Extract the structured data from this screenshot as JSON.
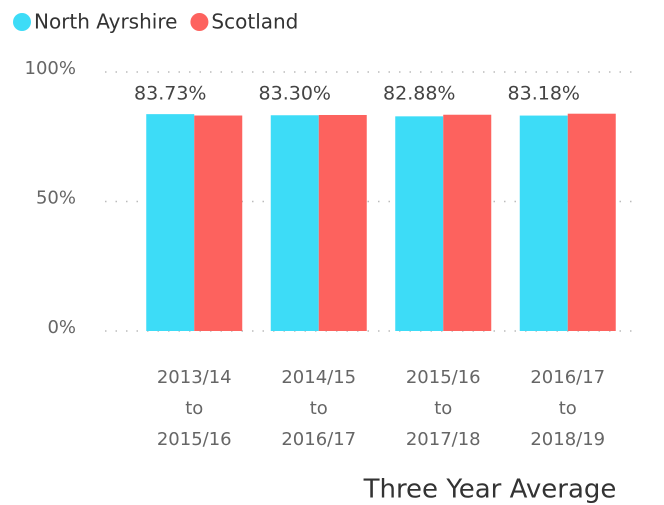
{
  "chart_data": {
    "type": "bar",
    "x_label": "Three Year Average",
    "categories": [
      "2013/14 to 2015/16",
      "2014/15 to 2016/17",
      "2015/16 to 2017/18",
      "2016/17 to 2018/19"
    ],
    "series": [
      {
        "name": "North Ayrshire",
        "color": "#3ddcf7",
        "values": [
          83.73,
          83.3,
          82.88,
          83.18
        ],
        "value_labels": [
          "83.73%",
          "83.30%",
          "82.88%",
          "83.18%"
        ]
      },
      {
        "name": "Scotland",
        "color": "#fd625e",
        "values": [
          83.2,
          83.4,
          83.5,
          83.9
        ]
      }
    ],
    "ylim": [
      0,
      100
    ],
    "yticks": [
      {
        "value": 0,
        "label": "0%"
      },
      {
        "value": 50,
        "label": "50%"
      },
      {
        "value": 100,
        "label": "100%"
      }
    ],
    "grid": true,
    "legend": "top-left"
  }
}
